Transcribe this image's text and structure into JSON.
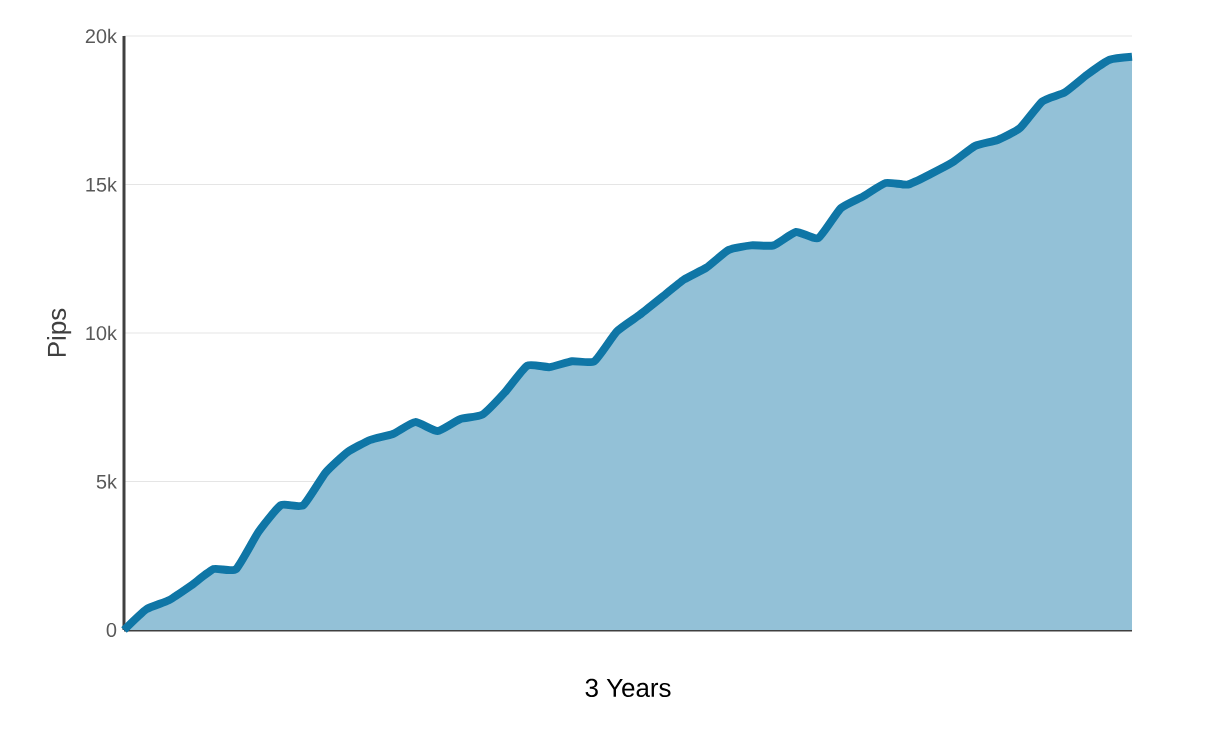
{
  "chart_data": {
    "type": "area",
    "xlabel": "3 Years",
    "ylabel": "Pips",
    "categories": [
      null,
      null,
      null,
      null,
      null,
      null,
      null,
      null,
      null,
      null,
      null,
      null,
      null,
      null,
      null,
      null,
      null,
      null,
      null,
      null,
      null,
      null,
      null,
      null,
      null,
      null,
      null,
      null,
      null,
      null,
      null,
      null,
      null,
      null,
      null,
      null,
      null,
      null,
      null,
      null,
      null,
      null,
      null,
      null,
      null,
      null
    ],
    "series": [
      {
        "color": "#0f76a6",
        "values": [
          0,
          700,
          1000,
          1500,
          2050,
          2050,
          3300,
          4200,
          4200,
          5300,
          6000,
          6400,
          6600,
          7000,
          6700,
          7100,
          7250,
          8000,
          8900,
          8850,
          9050,
          9050,
          10050,
          10600,
          11200,
          11800,
          12200,
          12800,
          12950,
          12950,
          13400,
          13200,
          14200,
          14600,
          15050,
          15000,
          15350,
          15750,
          16300,
          16500,
          16900,
          17800,
          18100,
          18700,
          19200,
          19300
        ]
      }
    ],
    "ylim": [
      0,
      20000
    ],
    "yticks": [
      0,
      {
        "value": 5000,
        "label": "5k"
      },
      {
        "value": 10000,
        "label": "10k"
      },
      {
        "value": 15000,
        "label": "15k"
      },
      {
        "value": 20000,
        "label": "20k"
      }
    ],
    "tick_labels": "y",
    "grid": "y"
  }
}
